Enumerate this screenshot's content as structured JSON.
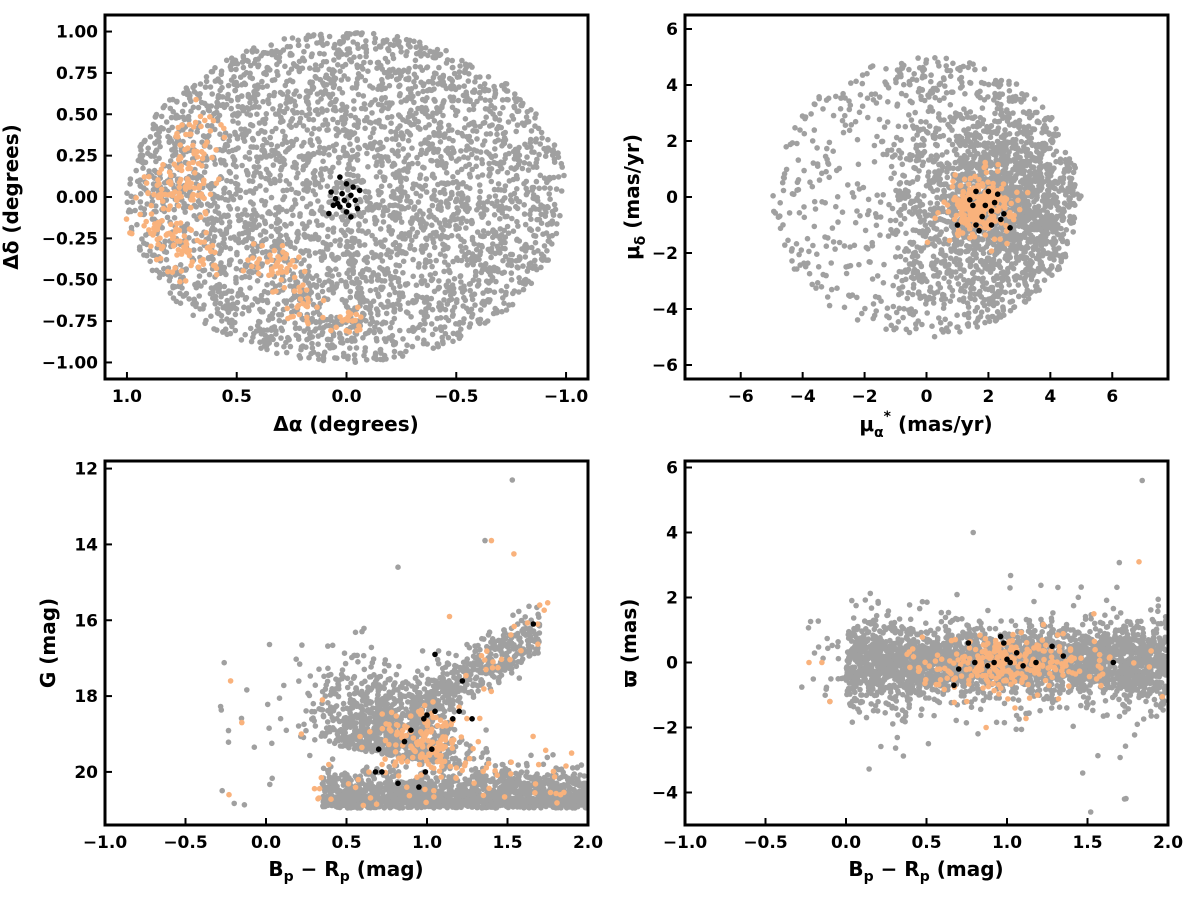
{
  "colors": {
    "background_stars": "#a0a0a0",
    "orange_members": "#f9b27c",
    "black_members": "#000000",
    "frame": "#000000"
  },
  "chart_data": [
    {
      "type": "scatter",
      "xlabel": "Δα (degrees)",
      "ylabel": "Δδ (degrees)",
      "xlim": [
        1.1,
        -1.1
      ],
      "ylim": [
        -1.1,
        1.1
      ],
      "x_inverted": true,
      "xticks": [
        1.0,
        0.5,
        0.0,
        -0.5,
        -1.0
      ],
      "xtick_labels": [
        "1.0",
        "0.5",
        "0.0",
        "−0.5",
        "−1.0"
      ],
      "yticks": [
        1.0,
        0.75,
        0.5,
        0.25,
        0.0,
        -0.25,
        -0.5,
        -0.75,
        -1.0
      ],
      "ytick_labels": [
        "1.00",
        "0.75",
        "0.50",
        "0.25",
        "0.00",
        "−0.25",
        "−0.50",
        "−0.75",
        "−1.00"
      ],
      "series": [
        {
          "role": "background",
          "color": "#a0a0a0",
          "distribution": "uniform disk",
          "center": [
            0,
            0
          ],
          "radius": 1.0,
          "count": 3500
        },
        {
          "role": "orange",
          "color": "#f9b27c",
          "clumps": [
            {
              "x": 0.68,
              "y": 0.33,
              "sx": 0.06,
              "sy": 0.09,
              "n": 45
            },
            {
              "x": 0.76,
              "y": 0.05,
              "sx": 0.09,
              "sy": 0.09,
              "n": 80
            },
            {
              "x": 0.83,
              "y": -0.25,
              "sx": 0.06,
              "sy": 0.1,
              "n": 60
            },
            {
              "x": 0.67,
              "y": -0.35,
              "sx": 0.05,
              "sy": 0.08,
              "n": 25
            },
            {
              "x": 0.33,
              "y": -0.4,
              "sx": 0.06,
              "sy": 0.06,
              "n": 45
            },
            {
              "x": 0.2,
              "y": -0.65,
              "sx": 0.05,
              "sy": 0.07,
              "n": 25
            },
            {
              "x": 0.0,
              "y": -0.74,
              "sx": 0.04,
              "sy": 0.04,
              "n": 20
            }
          ]
        },
        {
          "role": "black",
          "color": "#000000",
          "points": [
            [
              0.03,
              0.12
            ],
            [
              0.0,
              0.08
            ],
            [
              -0.03,
              0.06
            ],
            [
              -0.06,
              0.04
            ],
            [
              0.07,
              0.03
            ],
            [
              0.02,
              0.02
            ],
            [
              -0.02,
              0.01
            ],
            [
              0.05,
              -0.01
            ],
            [
              0.01,
              -0.02
            ],
            [
              -0.04,
              -0.02
            ],
            [
              0.06,
              -0.05
            ],
            [
              -0.01,
              -0.05
            ],
            [
              0.03,
              -0.06
            ],
            [
              -0.05,
              -0.07
            ],
            [
              0.08,
              -0.1
            ],
            [
              0.0,
              -0.09
            ],
            [
              -0.02,
              -0.12
            ],
            [
              0.04,
              -0.04
            ]
          ]
        }
      ]
    },
    {
      "type": "scatter",
      "xlabel": "μ_α* (mas/yr)",
      "ylabel": "μ_δ (mas/yr)",
      "xlim": [
        -7.8,
        7.8
      ],
      "ylim": [
        -6.5,
        6.5
      ],
      "xticks": [
        -6,
        -4,
        -2,
        0,
        2,
        4,
        6
      ],
      "xtick_labels": [
        "−6",
        "−4",
        "−2",
        "0",
        "2",
        "4",
        "6"
      ],
      "yticks": [
        6,
        4,
        2,
        0,
        -2,
        -4,
        -6
      ],
      "ytick_labels": [
        "6",
        "4",
        "2",
        "0",
        "−2",
        "−4",
        "−6"
      ],
      "series": [
        {
          "role": "background",
          "color": "#a0a0a0",
          "distribution": "disk clipped at radius 5",
          "center": [
            0,
            0
          ],
          "radius": 5.0,
          "dense_center": [
            2.2,
            -0.3
          ],
          "count": 3000
        },
        {
          "role": "orange",
          "color": "#f9b27c",
          "clumps": [
            {
              "x": 1.8,
              "y": -0.4,
              "sx": 0.5,
              "sy": 0.55,
              "n": 230
            }
          ]
        },
        {
          "role": "black",
          "color": "#000000",
          "points": [
            [
              1.0,
              -1.0
            ],
            [
              1.6,
              0.2
            ],
            [
              2.0,
              0.2
            ],
            [
              2.3,
              0.1
            ],
            [
              1.5,
              -0.3
            ],
            [
              2.1,
              -0.5
            ],
            [
              1.8,
              -0.7
            ],
            [
              2.4,
              -0.8
            ],
            [
              1.6,
              -1.0
            ],
            [
              2.1,
              -1.0
            ],
            [
              2.7,
              -1.1
            ],
            [
              1.9,
              -0.3
            ],
            [
              2.2,
              -0.2
            ],
            [
              1.4,
              -0.1
            ],
            [
              1.7,
              -1.2
            ],
            [
              2.5,
              -0.6
            ]
          ]
        }
      ]
    },
    {
      "type": "scatter",
      "xlabel": "B_p − R_p (mag)",
      "ylabel": "G (mag)",
      "xlim": [
        -1.0,
        2.0
      ],
      "ylim": [
        21.4,
        11.8
      ],
      "y_inverted": true,
      "xticks": [
        -1.0,
        -0.5,
        0.0,
        0.5,
        1.0,
        1.5,
        2.0
      ],
      "xtick_labels": [
        "−1.0",
        "−0.5",
        "0.0",
        "0.5",
        "1.0",
        "1.5",
        "2.0"
      ],
      "yticks": [
        20,
        18,
        16,
        14,
        12
      ],
      "ytick_labels": [
        "20",
        "18",
        "16",
        "14",
        "12"
      ],
      "series": [
        {
          "role": "background",
          "color": "#a0a0a0",
          "distribution": "color–magnitude diagram, faint limit G≈21",
          "count": 3000
        },
        {
          "role": "orange",
          "color": "#f9b27c",
          "clumps": [
            {
              "x": 1.0,
              "y": 19.2,
              "sx": 0.15,
              "sy": 0.5,
              "n": 140
            }
          ]
        },
        {
          "role": "black",
          "color": "#000000",
          "points": [
            [
              0.68,
              20.0
            ],
            [
              0.7,
              19.4
            ],
            [
              0.82,
              20.3
            ],
            [
              0.86,
              19.2
            ],
            [
              0.9,
              18.9
            ],
            [
              0.95,
              20.4
            ],
            [
              0.99,
              20.0
            ],
            [
              1.03,
              19.4
            ],
            [
              0.98,
              18.6
            ],
            [
              1.05,
              18.4
            ],
            [
              1.16,
              18.6
            ],
            [
              1.2,
              18.4
            ],
            [
              1.28,
              18.6
            ],
            [
              1.22,
              17.6
            ],
            [
              1.05,
              16.9
            ],
            [
              1.66,
              16.1
            ],
            [
              0.72,
              20.0
            ],
            [
              1.0,
              18.5
            ]
          ]
        }
      ]
    },
    {
      "type": "scatter",
      "xlabel": "B_p − R_p (mag)",
      "ylabel": "ϖ (mas)",
      "xlim": [
        -1.0,
        2.0
      ],
      "ylim": [
        -5.0,
        6.2
      ],
      "xticks": [
        -1.0,
        -0.5,
        0.0,
        0.5,
        1.0,
        1.5,
        2.0
      ],
      "xtick_labels": [
        "−1.0",
        "−0.5",
        "0.0",
        "0.5",
        "1.0",
        "1.5",
        "2.0"
      ],
      "yticks": [
        6,
        4,
        2,
        0,
        -2,
        -4
      ],
      "ytick_labels": [
        "6",
        "4",
        "2",
        "0",
        "−2",
        "−4"
      ],
      "series": [
        {
          "role": "background",
          "color": "#a0a0a0",
          "distribution": "centered near ϖ=0",
          "count": 3000
        },
        {
          "role": "orange",
          "color": "#f9b27c",
          "clumps": [
            {
              "x": 1.0,
              "y": 0.0,
              "sx": 0.25,
              "sy": 0.45,
              "n": 220
            }
          ]
        },
        {
          "role": "black",
          "color": "#000000",
          "points": [
            [
              0.67,
              -0.7
            ],
            [
              0.7,
              -0.2
            ],
            [
              0.76,
              0.6
            ],
            [
              0.8,
              0.0
            ],
            [
              0.88,
              -0.1
            ],
            [
              0.96,
              0.8
            ],
            [
              0.98,
              0.6
            ],
            [
              1.02,
              0.0
            ],
            [
              1.06,
              0.3
            ],
            [
              1.1,
              -0.1
            ],
            [
              1.18,
              0.0
            ],
            [
              1.28,
              0.5
            ],
            [
              1.35,
              0.2
            ],
            [
              1.66,
              0.0
            ],
            [
              0.92,
              0.0
            ],
            [
              1.0,
              0.1
            ]
          ]
        }
      ]
    }
  ]
}
